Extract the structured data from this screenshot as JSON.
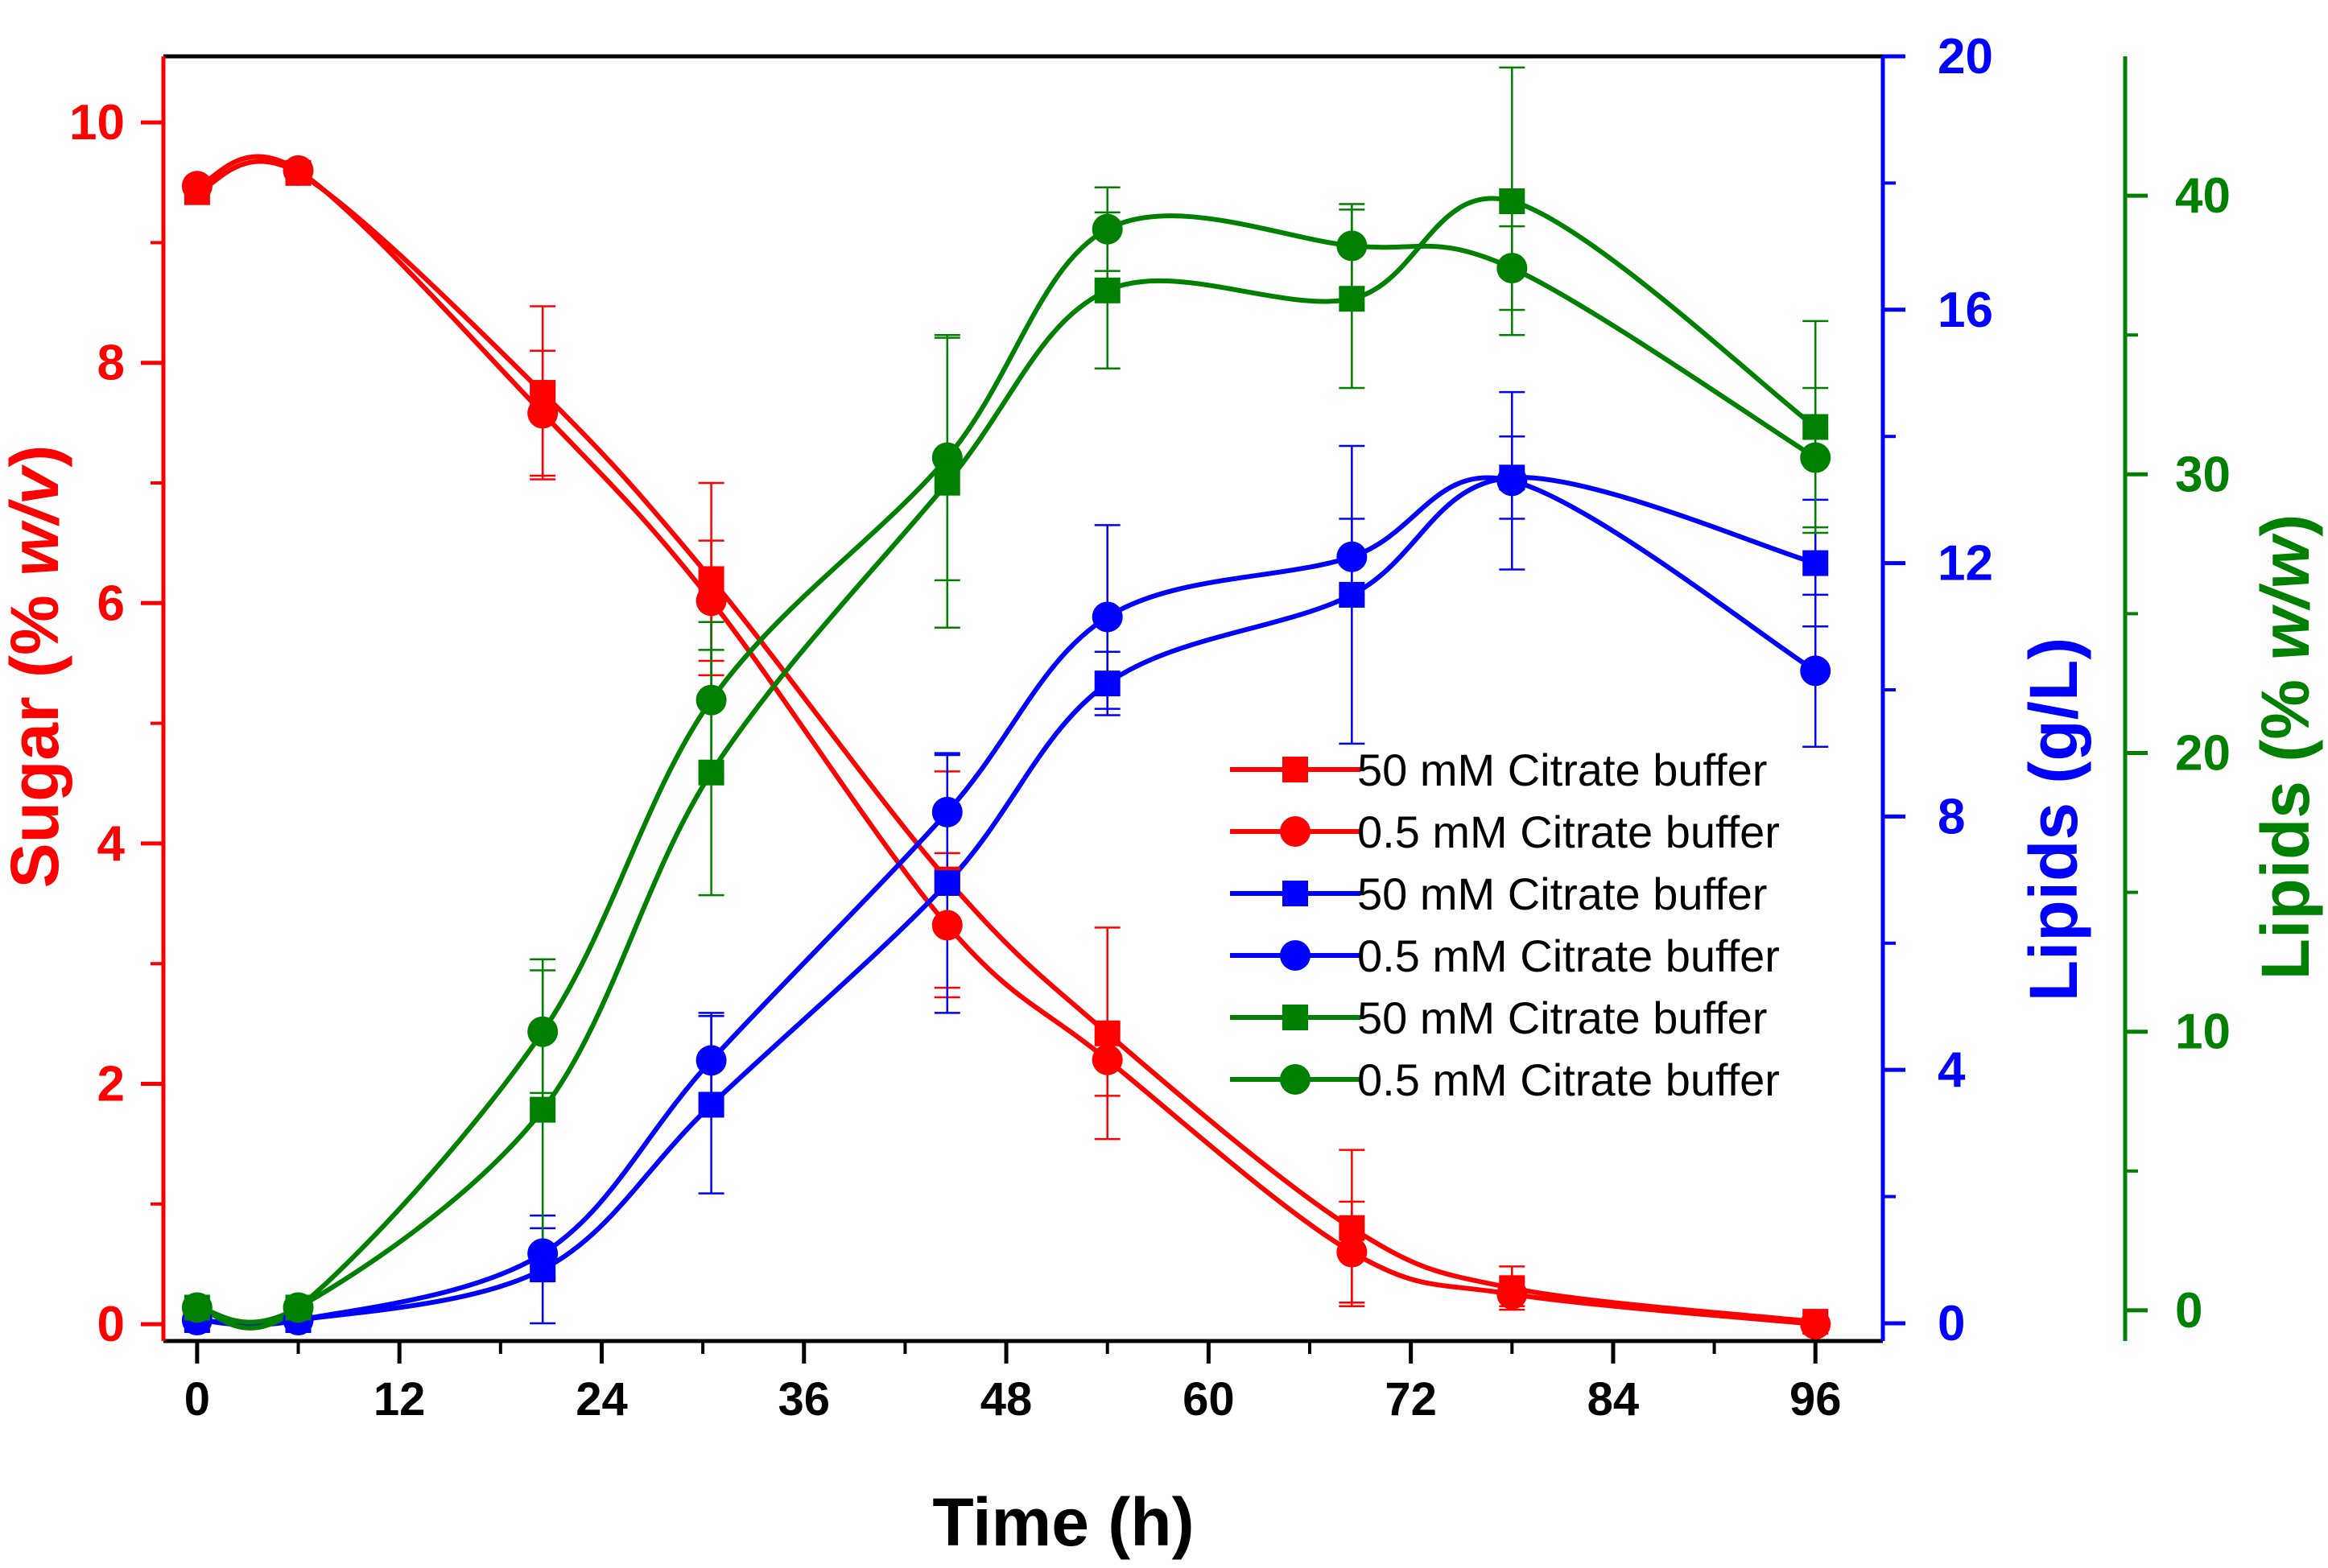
{
  "chart_data": {
    "type": "line",
    "x_axis": {
      "label": "Time (h)",
      "range": [
        -2,
        100
      ],
      "ticks": [
        0,
        12,
        24,
        36,
        48,
        60,
        72,
        84,
        96
      ],
      "tick_labels": [
        "0",
        "12",
        "24",
        "36",
        "48",
        "60",
        "72",
        "84",
        "96"
      ],
      "color": "#000000"
    },
    "y_axes": {
      "sugar": {
        "label_prefix": "Sugar (% ",
        "label_italic": "w/v",
        "label_suffix": ")",
        "range": [
          -0.14,
          10.55
        ],
        "ticks": [
          0,
          2,
          4,
          6,
          8,
          10
        ],
        "tick_labels": [
          "0",
          "2",
          "4",
          "6",
          "8",
          "10"
        ],
        "color": "#ff0000",
        "side": "left"
      },
      "lipids_gl": {
        "label": "Lipids (g/L)",
        "range": [
          -0.28,
          20
        ],
        "ticks": [
          0,
          4,
          8,
          12,
          16,
          20
        ],
        "tick_labels": [
          "0",
          "4",
          "8",
          "12",
          "16",
          "20"
        ],
        "color": "#0000ff",
        "side": "right"
      },
      "lipids_ww": {
        "label_prefix": "Lipids (% ",
        "label_italic": "w/w",
        "label_suffix": ")",
        "range": [
          -1.1,
          45
        ],
        "ticks": [
          0,
          10,
          20,
          30,
          40
        ],
        "tick_labels": [
          "0",
          "10",
          "20",
          "30",
          "40"
        ],
        "color": "#008000",
        "side": "far-right"
      }
    },
    "series": [
      {
        "name": "50  mM Citrate buffer",
        "axis": "sugar",
        "marker": "square",
        "color": "#ff0000",
        "x": [
          0,
          6,
          20.5,
          30.5,
          44.5,
          54,
          68.5,
          78,
          96
        ],
        "values": [
          9.42,
          9.58,
          7.75,
          6.2,
          3.7,
          2.42,
          0.8,
          0.3,
          0.02
        ],
        "errors": [
          0,
          0,
          0.72,
          0.8,
          0.9,
          0.88,
          0.65,
          0.18,
          0
        ]
      },
      {
        "name": "0.5 mM Citrate buffer",
        "axis": "sugar",
        "marker": "circle",
        "color": "#ff0000",
        "x": [
          0,
          6,
          20.5,
          30.5,
          44.5,
          54,
          68.5,
          78,
          96
        ],
        "values": [
          9.47,
          9.6,
          7.58,
          6.02,
          3.32,
          2.2,
          0.6,
          0.25,
          0.0
        ],
        "errors": [
          0,
          0,
          0.52,
          0.5,
          0.6,
          0.3,
          0.42,
          0.1,
          0
        ]
      },
      {
        "name": "50  mM Citrate buffer",
        "axis": "lipids_gl",
        "marker": "square",
        "color": "#0000ff",
        "x": [
          0,
          6,
          20.5,
          30.5,
          44.5,
          54,
          68.5,
          78,
          96
        ],
        "values": [
          0.05,
          0.05,
          0.85,
          3.45,
          6.95,
          10.1,
          11.5,
          13.35,
          12.0
        ],
        "errors": [
          0,
          0,
          0.85,
          1.4,
          2.05,
          0.5,
          2.35,
          0.65,
          1.0
        ]
      },
      {
        "name": "0.5 mM Citrate buffer",
        "axis": "lipids_gl",
        "marker": "circle",
        "color": "#0000ff",
        "x": [
          0,
          6,
          20.5,
          30.5,
          44.5,
          54,
          68.5,
          78,
          96
        ],
        "values": [
          0.05,
          0.05,
          1.1,
          4.15,
          8.07,
          11.15,
          12.1,
          13.3,
          10.3
        ],
        "errors": [
          0,
          0,
          0.4,
          0.75,
          0.9,
          1.45,
          0.6,
          1.4,
          1.2
        ]
      },
      {
        "name": "50  mM Citrate buffer",
        "axis": "lipids_ww",
        "marker": "square",
        "color": "#008000",
        "x": [
          0,
          6,
          20.5,
          30.5,
          44.5,
          54,
          68.5,
          78,
          96
        ],
        "values": [
          0.1,
          0.1,
          7.2,
          19.3,
          29.7,
          36.6,
          36.3,
          39.8,
          31.7
        ],
        "errors": [
          0,
          0,
          5.4,
          4.4,
          5.2,
          2.8,
          3.2,
          4.8,
          3.8
        ]
      },
      {
        "name": "0.5 mM Citrate buffer",
        "axis": "lipids_ww",
        "marker": "circle",
        "color": "#008000",
        "x": [
          0,
          6,
          20.5,
          30.5,
          44.5,
          54,
          68.5,
          78,
          96
        ],
        "values": [
          0.1,
          0.1,
          10.0,
          21.9,
          30.6,
          38.8,
          38.2,
          37.4,
          30.6
        ],
        "errors": [
          0,
          0,
          2.2,
          2.8,
          4.4,
          1.5,
          1.5,
          1.5,
          2.5
        ]
      }
    ],
    "legend": {
      "position": "center-right",
      "entries": [
        {
          "label": "50  mM Citrate buffer",
          "marker": "square",
          "color": "#ff0000"
        },
        {
          "label": "0.5 mM Citrate buffer",
          "marker": "circle",
          "color": "#ff0000"
        },
        {
          "label": "50  mM Citrate buffer",
          "marker": "square",
          "color": "#0000ff"
        },
        {
          "label": "0.5 mM Citrate buffer",
          "marker": "circle",
          "color": "#0000ff"
        },
        {
          "label": "50  mM Citrate buffer",
          "marker": "square",
          "color": "#008000"
        },
        {
          "label": "0.5 mM Citrate buffer",
          "marker": "circle",
          "color": "#008000"
        }
      ]
    },
    "grid": false
  }
}
